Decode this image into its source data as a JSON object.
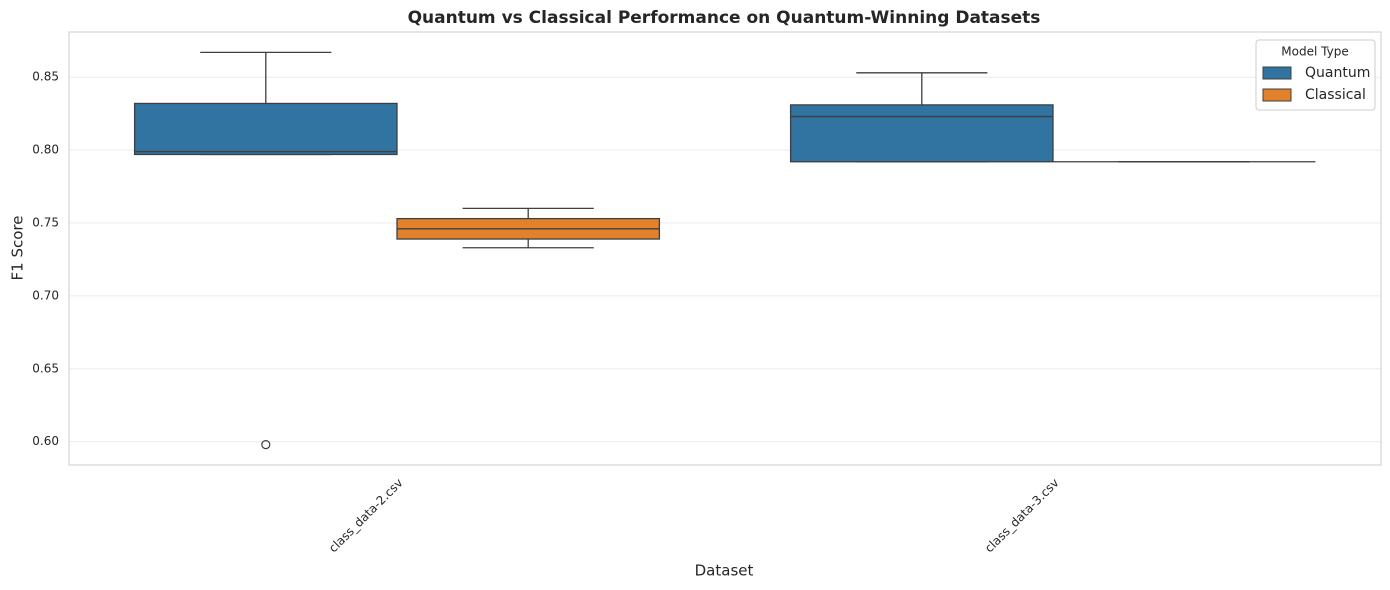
{
  "chart_data": {
    "type": "box",
    "title": "Quantum vs Classical Performance on Quantum-Winning Datasets",
    "xlabel": "Dataset",
    "ylabel": "F1 Score",
    "categories": [
      "class_data-2.csv",
      "class_data-3.csv"
    ],
    "series": [
      {
        "name": "Quantum",
        "color": "#3274a1",
        "whislo": [
          0.797,
          0.792
        ],
        "q1": [
          0.797,
          0.792
        ],
        "med": [
          0.799,
          0.823
        ],
        "q3": [
          0.832,
          0.831
        ],
        "whishi": [
          0.867,
          0.853
        ],
        "outliers": [
          [
            0.598
          ],
          []
        ]
      },
      {
        "name": "Classical",
        "color": "#e1812c",
        "whislo": [
          0.733,
          0.792
        ],
        "q1": [
          0.739,
          0.792
        ],
        "med": [
          0.746,
          0.792
        ],
        "q3": [
          0.753,
          0.792
        ],
        "whishi": [
          0.76,
          0.792
        ],
        "outliers": [
          [],
          []
        ]
      }
    ],
    "ylim": [
      0.584,
      0.881
    ],
    "yticks": [
      {
        "value": 0.6,
        "label": "0.60"
      },
      0.65,
      {
        "value": 0.7,
        "label": "0.70"
      },
      0.75,
      {
        "value": 0.8,
        "label": "0.80"
      },
      0.85
    ],
    "grid": true,
    "legend_title": "Model Type",
    "legend_loc": "upper right"
  }
}
